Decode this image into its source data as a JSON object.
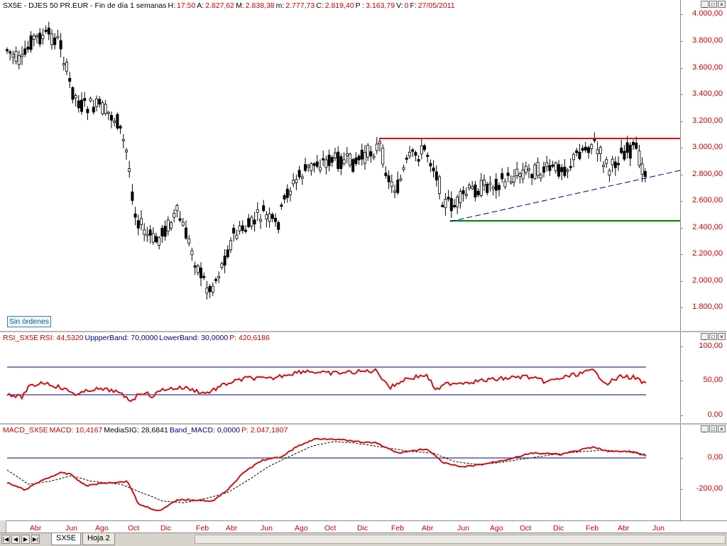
{
  "main": {
    "header": [
      {
        "text": "SX5E - DJES 50 PR.EUR - Fin de día 1 semanas",
        "color": "#000000"
      },
      {
        "text": "H:",
        "color": "#000000"
      },
      {
        "text": "17:50",
        "color": "#c00000"
      },
      {
        "text": "A:",
        "color": "#000000"
      },
      {
        "text": "2.827,62",
        "color": "#c00000"
      },
      {
        "text": "M:",
        "color": "#000000"
      },
      {
        "text": "2.838,38",
        "color": "#c00000"
      },
      {
        "text": "m:",
        "color": "#000000"
      },
      {
        "text": "2.777,73",
        "color": "#c00000"
      },
      {
        "text": "C:",
        "color": "#000000"
      },
      {
        "text": "2.819,40",
        "color": "#c00000"
      },
      {
        "text": "P :",
        "color": "#000000"
      },
      {
        "text": "3.163,79",
        "color": "#c00000"
      },
      {
        "text": "V:",
        "color": "#000000"
      },
      {
        "text": "0",
        "color": "#c00000"
      },
      {
        "text": "F:",
        "color": "#000000"
      },
      {
        "text": "27/05/2011",
        "color": "#c00000"
      }
    ],
    "yticks": [
      "4.000,00",
      "3.800,00",
      "3.600,00",
      "3.400,00",
      "3.200,00",
      "3.000,00",
      "2.800,00",
      "2.600,00",
      "2.400,00",
      "2.200,00",
      "2.000,00",
      "1.800,00"
    ],
    "orders_button": "Sin órdenes"
  },
  "rsi": {
    "header": [
      {
        "text": "RSI_SX5E",
        "color": "#c00000"
      },
      {
        "text": "RSI: 44,5320",
        "color": "#c00000"
      },
      {
        "text": "UppperBand: 70,0000",
        "color": "#000080"
      },
      {
        "text": "LowerBand: 30,0000",
        "color": "#000080"
      },
      {
        "text": "P: 420,6186",
        "color": "#c00000"
      }
    ],
    "yticks": [
      "100,00",
      "50,00",
      "0,00"
    ]
  },
  "macd": {
    "header": [
      {
        "text": "MACD_SX5E",
        "color": "#c00000"
      },
      {
        "text": "MACD: 10,4167",
        "color": "#c00000"
      },
      {
        "text": "MediaSIG: 28,6841",
        "color": "#000000"
      },
      {
        "text": "Band_MACD: 0,0000",
        "color": "#000080"
      },
      {
        "text": "P: 2.047,1807",
        "color": "#c00000"
      }
    ],
    "yticks": [
      "0,00",
      "-200,00"
    ]
  },
  "xaxis": [
    "Abr",
    "Jun",
    "Ago",
    "Oct",
    "Dic",
    "Feb",
    "Abr",
    "Jun",
    "Ago",
    "Oct",
    "Dic",
    "Feb",
    "Abr",
    "Jun",
    "Ago",
    "Oct",
    "Dic",
    "Feb",
    "Abr",
    "Jun"
  ],
  "tabs": [
    "SX5E",
    "Hoja 2"
  ],
  "window_buttons": [
    "_",
    "□",
    "×"
  ],
  "nav_buttons": [
    "|◀",
    "◀",
    "▶",
    "▶|"
  ],
  "colors": {
    "resistance": "#e00000",
    "support": "#008000",
    "trendline": "#00008c",
    "rsi": "#d01010",
    "macd": "#d01010",
    "band": "#000080",
    "axis_text": "#c00000"
  }
}
